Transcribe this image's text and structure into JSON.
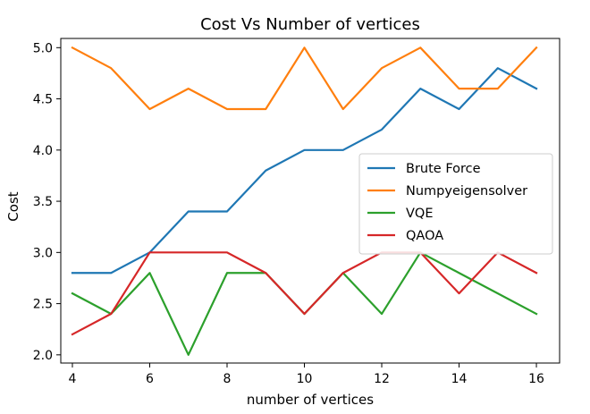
{
  "chart_data": {
    "type": "line",
    "title": "Cost Vs Number of vertices",
    "xlabel": "number of vertices",
    "ylabel": "Cost",
    "x": [
      4,
      5,
      6,
      7,
      8,
      9,
      10,
      11,
      12,
      13,
      14,
      15,
      16
    ],
    "xlim": [
      3.7,
      16.6
    ],
    "ylim": [
      1.92,
      5.09
    ],
    "xticks": [
      4,
      6,
      8,
      10,
      12,
      14,
      16
    ],
    "yticks": [
      2.0,
      2.5,
      3.0,
      3.5,
      4.0,
      4.5,
      5.0
    ],
    "xtick_labels": [
      "4",
      "6",
      "8",
      "10",
      "12",
      "14",
      "16"
    ],
    "ytick_labels": [
      "2.0",
      "2.5",
      "3.0",
      "3.5",
      "4.0",
      "4.5",
      "5.0"
    ],
    "grid": false,
    "legend_position": "center-right",
    "series": [
      {
        "name": "Brute Force",
        "color": "#1f77b4",
        "values": [
          2.8,
          2.8,
          3.0,
          3.4,
          3.4,
          3.8,
          4.0,
          4.0,
          4.2,
          4.6,
          4.4,
          4.8,
          4.6
        ]
      },
      {
        "name": "Numpyeigensolver",
        "color": "#ff7f0e",
        "values": [
          5.0,
          4.8,
          4.4,
          4.6,
          4.4,
          4.4,
          5.0,
          4.4,
          4.8,
          5.0,
          4.6,
          4.6,
          5.0
        ]
      },
      {
        "name": "VQE",
        "color": "#2ca02c",
        "values": [
          2.6,
          2.4,
          2.8,
          2.0,
          2.8,
          2.8,
          2.4,
          2.8,
          2.4,
          3.0,
          2.8,
          2.6,
          2.4
        ]
      },
      {
        "name": "QAOA",
        "color": "#d62728",
        "values": [
          2.2,
          2.4,
          3.0,
          3.0,
          3.0,
          2.8,
          2.4,
          2.8,
          3.0,
          3.0,
          2.6,
          3.0,
          2.8
        ]
      }
    ]
  }
}
